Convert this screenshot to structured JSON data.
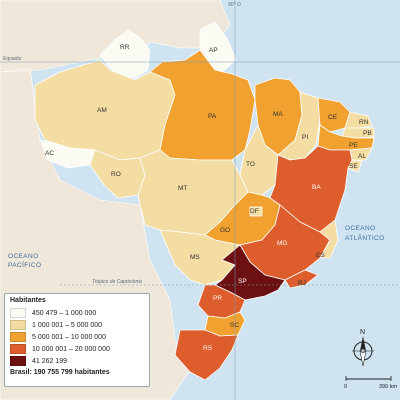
{
  "lines": {
    "meridian": "50° O",
    "equator": "Equador",
    "tropic": "Trópico de Capricórnio"
  },
  "oceans": {
    "pacific": [
      "OCEANO",
      "PACÍFICO"
    ],
    "atlantic": [
      "OCEANO",
      "ATLÂNTICO"
    ]
  },
  "legend": {
    "title": "Habitantes",
    "classes": [
      {
        "label": "450 479 – 1 000 000",
        "color": "#fbfbf3"
      },
      {
        "label": "1 000 001 – 5 000 000",
        "color": "#f3dda2"
      },
      {
        "label": "5 000 001 – 10 000 000",
        "color": "#f0a12f"
      },
      {
        "label": "10 000 001 – 20 000 000",
        "color": "#de5d2c"
      },
      {
        "label": "41 262 199",
        "color": "#6c1012"
      }
    ],
    "total": "Brasil: 190 755 799 habitantes"
  },
  "north_label": "N",
  "scale": {
    "start": "0",
    "end": "390 km"
  },
  "states": [
    {
      "code": "RR",
      "class": 0
    },
    {
      "code": "AP",
      "class": 0
    },
    {
      "code": "AM",
      "class": 1
    },
    {
      "code": "PA",
      "class": 2
    },
    {
      "code": "MA",
      "class": 2
    },
    {
      "code": "CE",
      "class": 2
    },
    {
      "code": "RN",
      "class": 1
    },
    {
      "code": "PB",
      "class": 1
    },
    {
      "code": "PE",
      "class": 2
    },
    {
      "code": "PI",
      "class": 1
    },
    {
      "code": "AL",
      "class": 1
    },
    {
      "code": "SE",
      "class": 1
    },
    {
      "code": "AC",
      "class": 0
    },
    {
      "code": "RO",
      "class": 1
    },
    {
      "code": "TO",
      "class": 1
    },
    {
      "code": "BA",
      "class": 3
    },
    {
      "code": "MT",
      "class": 1
    },
    {
      "code": "DF",
      "class": 1
    },
    {
      "code": "GO",
      "class": 2
    },
    {
      "code": "MG",
      "class": 3
    },
    {
      "code": "ES",
      "class": 1
    },
    {
      "code": "MS",
      "class": 1
    },
    {
      "code": "SP",
      "class": 4
    },
    {
      "code": "RJ",
      "class": 3
    },
    {
      "code": "PR",
      "class": 3
    },
    {
      "code": "SC",
      "class": 2
    },
    {
      "code": "RS",
      "class": 3
    }
  ]
}
